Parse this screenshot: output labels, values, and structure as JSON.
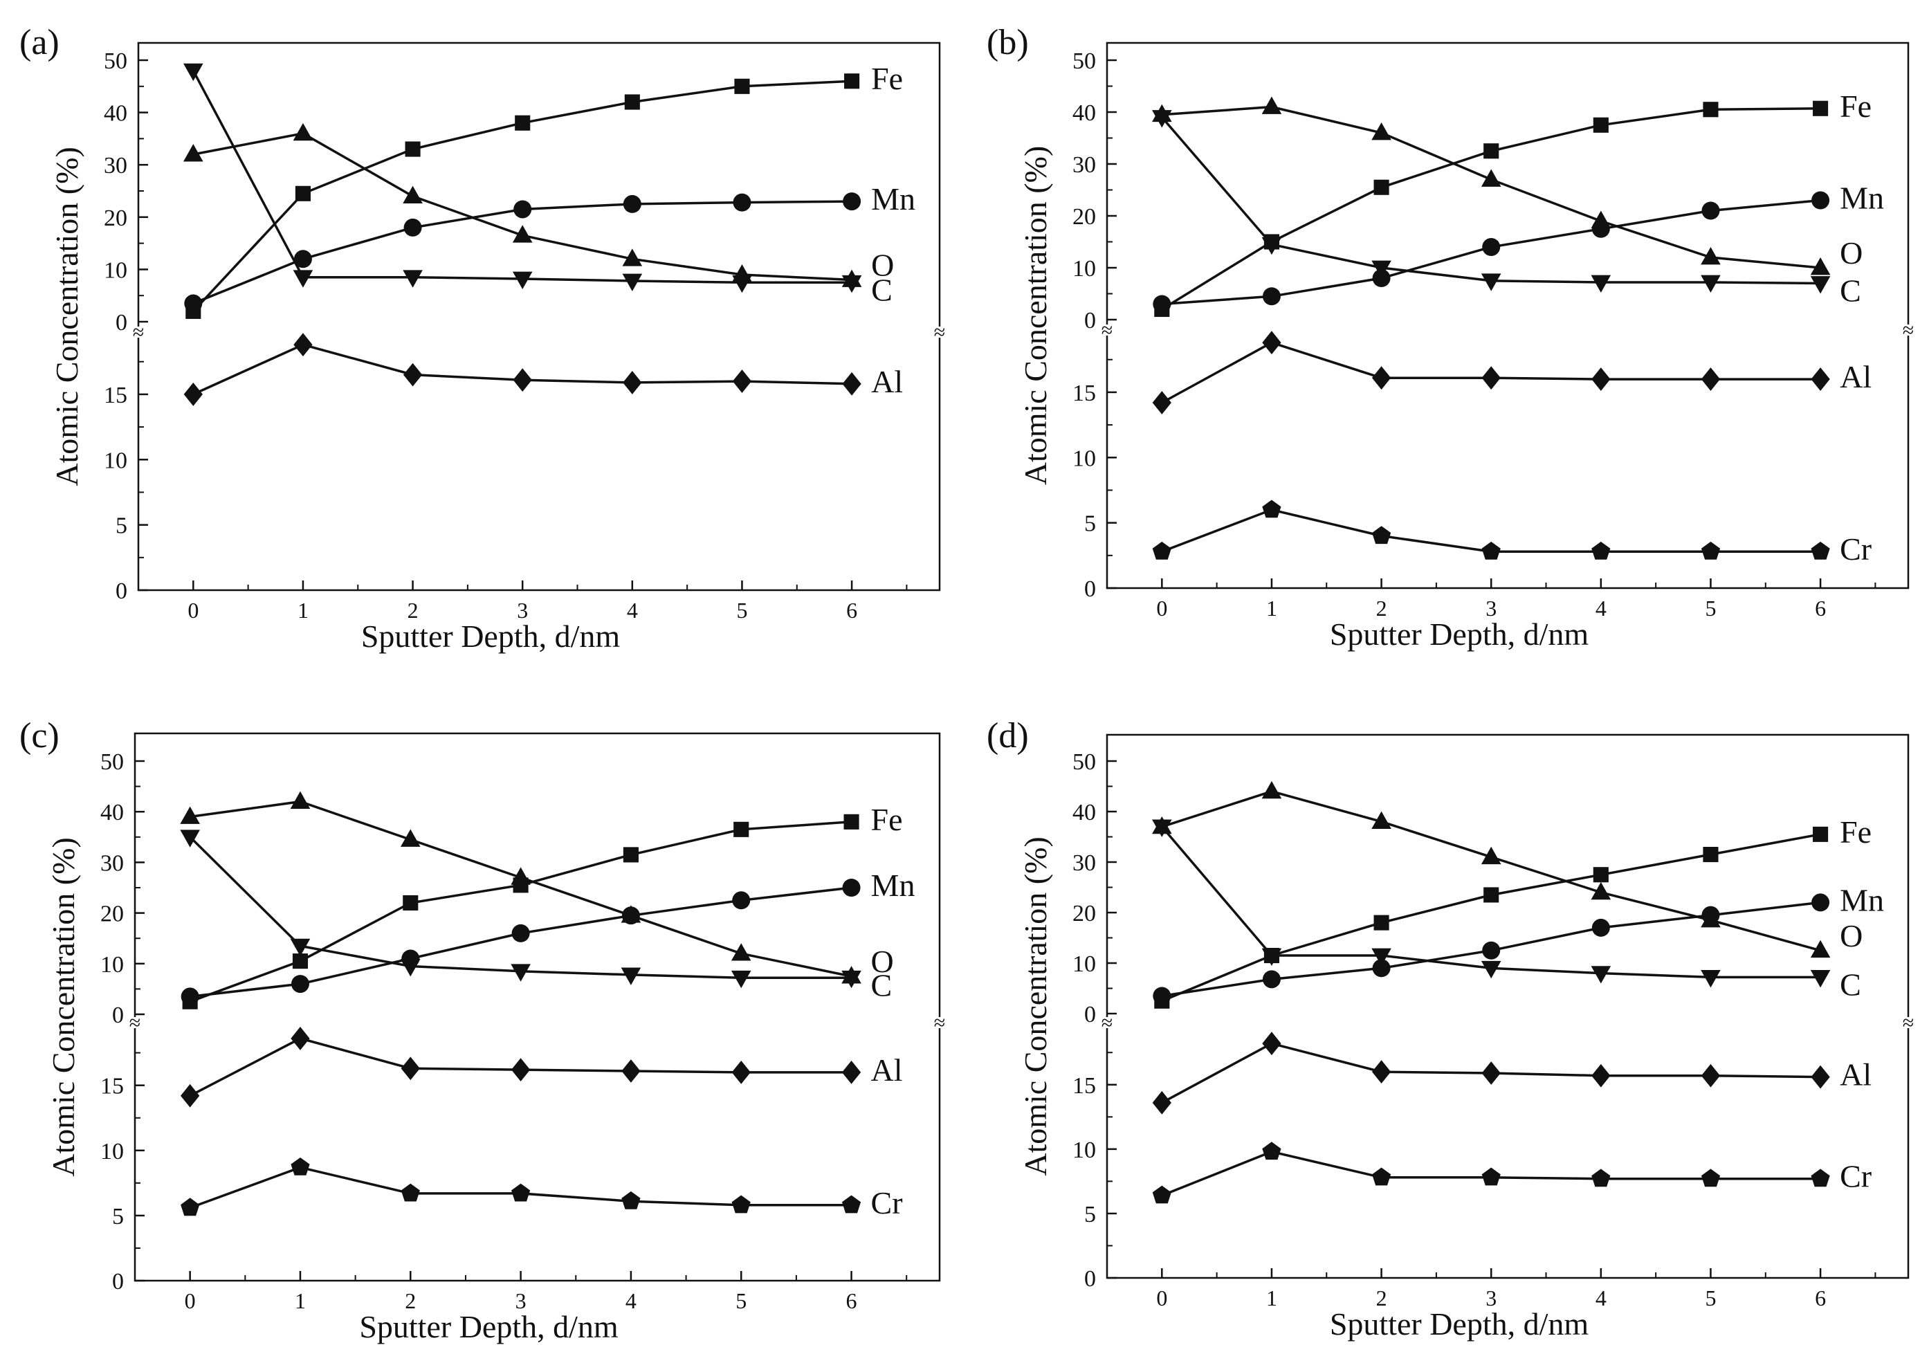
{
  "chart_data": [
    {
      "type": "line",
      "panel_label": "(a)",
      "xlabel": "Sputter Depth, d/nm",
      "ylabel": "Atomic Concentration (%)",
      "x": [
        0,
        1,
        2,
        3,
        4,
        5,
        6
      ],
      "x_ticks": [
        "0",
        "1",
        "2",
        "3",
        "4",
        "5",
        "6"
      ],
      "xlim": [
        -0.5,
        6.8
      ],
      "upper_axis": {
        "ylim": [
          0,
          55
        ],
        "ticks": [
          "0",
          "10",
          "20",
          "30",
          "40",
          "50"
        ]
      },
      "lower_axis": {
        "ylim": [
          0,
          20
        ],
        "ticks": [
          "0",
          "5",
          "10",
          "15"
        ]
      },
      "axis_break": "≈",
      "series": [
        {
          "name": "Fe",
          "marker": "square",
          "axis": "upper",
          "values": [
            2,
            24.5,
            33,
            38,
            42,
            45,
            46
          ]
        },
        {
          "name": "Mn",
          "marker": "circle",
          "axis": "upper",
          "values": [
            3.5,
            12,
            18,
            21.5,
            22.5,
            22.8,
            23
          ]
        },
        {
          "name": "O",
          "marker": "triangle-up",
          "axis": "upper",
          "values": [
            32,
            36,
            24,
            16.5,
            12,
            9,
            8
          ]
        },
        {
          "name": "C",
          "marker": "triangle-down",
          "axis": "upper",
          "values": [
            48,
            8.5,
            8.5,
            8.2,
            7.8,
            7.5,
            7.5
          ]
        },
        {
          "name": "Al",
          "marker": "diamond",
          "axis": "lower",
          "values": [
            15,
            18.8,
            16.5,
            16.1,
            15.9,
            16,
            15.8
          ]
        }
      ]
    },
    {
      "type": "line",
      "panel_label": "(b)",
      "xlabel": "Sputter Depth, d/nm",
      "ylabel": "Atomic Concentration (%)",
      "x": [
        0,
        1,
        2,
        3,
        4,
        5,
        6
      ],
      "x_ticks": [
        "0",
        "1",
        "2",
        "3",
        "4",
        "5",
        "6"
      ],
      "xlim": [
        -0.5,
        6.8
      ],
      "upper_axis": {
        "ylim": [
          0,
          55
        ],
        "ticks": [
          "0",
          "10",
          "20",
          "30",
          "40",
          "50"
        ]
      },
      "lower_axis": {
        "ylim": [
          0,
          20
        ],
        "ticks": [
          "0",
          "5",
          "10",
          "15"
        ]
      },
      "axis_break": "≈",
      "series": [
        {
          "name": "Fe",
          "marker": "square",
          "axis": "upper",
          "values": [
            2,
            15,
            25.5,
            32.5,
            37.5,
            40.5,
            40.7
          ]
        },
        {
          "name": "Mn",
          "marker": "circle",
          "axis": "upper",
          "values": [
            3,
            4.5,
            8,
            14,
            17.5,
            21,
            23
          ]
        },
        {
          "name": "O",
          "marker": "triangle-up",
          "axis": "upper",
          "values": [
            39.5,
            41,
            36,
            27,
            19,
            12,
            10
          ]
        },
        {
          "name": "C",
          "marker": "triangle-down",
          "axis": "upper",
          "values": [
            39,
            14.5,
            10,
            7.5,
            7.2,
            7.2,
            7
          ]
        },
        {
          "name": "Al",
          "marker": "diamond",
          "axis": "lower",
          "values": [
            14.2,
            18.8,
            16.1,
            16.1,
            16,
            16,
            16
          ]
        },
        {
          "name": "Cr",
          "marker": "pentagon",
          "axis": "lower",
          "values": [
            2.8,
            6,
            4,
            2.8,
            2.8,
            2.8,
            2.8
          ]
        }
      ]
    },
    {
      "type": "line",
      "panel_label": "(c)",
      "xlabel": "Sputter Depth, d/nm",
      "ylabel": "Atomic Concentration (%)",
      "x": [
        0,
        1,
        2,
        3,
        4,
        5,
        6
      ],
      "x_ticks": [
        "0",
        "1",
        "2",
        "3",
        "4",
        "5",
        "6"
      ],
      "xlim": [
        -0.5,
        6.8
      ],
      "upper_axis": {
        "ylim": [
          0,
          55
        ],
        "ticks": [
          "0",
          "10",
          "20",
          "30",
          "40",
          "50"
        ]
      },
      "lower_axis": {
        "ylim": [
          0,
          20
        ],
        "ticks": [
          "0",
          "5",
          "10",
          "15"
        ]
      },
      "axis_break": "≈",
      "series": [
        {
          "name": "Fe",
          "marker": "square",
          "axis": "upper",
          "values": [
            2.5,
            10.5,
            22,
            25.5,
            31.5,
            36.5,
            38
          ]
        },
        {
          "name": "Mn",
          "marker": "circle",
          "axis": "upper",
          "values": [
            3.5,
            6,
            11,
            16,
            19.5,
            22.5,
            25
          ]
        },
        {
          "name": "O",
          "marker": "triangle-up",
          "axis": "upper",
          "values": [
            39,
            42,
            34.5,
            27,
            19.5,
            12,
            7.5
          ]
        },
        {
          "name": "C",
          "marker": "triangle-down",
          "axis": "upper",
          "values": [
            35,
            13.5,
            9.5,
            8.5,
            7.8,
            7.2,
            7.2
          ]
        },
        {
          "name": "Al",
          "marker": "diamond",
          "axis": "lower",
          "values": [
            14.2,
            18.6,
            16.3,
            16.2,
            16.1,
            16,
            16
          ]
        },
        {
          "name": "Cr",
          "marker": "pentagon",
          "axis": "lower",
          "values": [
            5.6,
            8.7,
            6.7,
            6.7,
            6.1,
            5.8,
            5.8
          ]
        }
      ]
    },
    {
      "type": "line",
      "panel_label": "(d)",
      "xlabel": "Sputter Depth, d/nm",
      "ylabel": "Atomic Concentration (%)",
      "x": [
        0,
        1,
        2,
        3,
        4,
        5,
        6
      ],
      "x_ticks": [
        "0",
        "1",
        "2",
        "3",
        "4",
        "5",
        "6"
      ],
      "xlim": [
        -0.5,
        6.8
      ],
      "upper_axis": {
        "ylim": [
          0,
          55
        ],
        "ticks": [
          "0",
          "10",
          "20",
          "30",
          "40",
          "50"
        ]
      },
      "lower_axis": {
        "ylim": [
          0,
          20
        ],
        "ticks": [
          "0",
          "5",
          "10",
          "15"
        ]
      },
      "axis_break": "≈",
      "series": [
        {
          "name": "Fe",
          "marker": "square",
          "axis": "upper",
          "values": [
            2.5,
            11.5,
            18,
            23.5,
            27.5,
            31.5,
            35.5
          ]
        },
        {
          "name": "Mn",
          "marker": "circle",
          "axis": "upper",
          "values": [
            3.5,
            6.8,
            9,
            12.5,
            17,
            19.5,
            22
          ]
        },
        {
          "name": "O",
          "marker": "triangle-up",
          "axis": "upper",
          "values": [
            37,
            44,
            38,
            31,
            24,
            18.5,
            12.5
          ]
        },
        {
          "name": "C",
          "marker": "triangle-down",
          "axis": "upper",
          "values": [
            37,
            11.5,
            11.5,
            9,
            8,
            7.2,
            7.2
          ]
        },
        {
          "name": "Al",
          "marker": "diamond",
          "axis": "lower",
          "values": [
            13.6,
            18.2,
            16,
            15.9,
            15.7,
            15.7,
            15.6
          ]
        },
        {
          "name": "Cr",
          "marker": "pentagon",
          "axis": "lower",
          "values": [
            6.4,
            9.8,
            7.8,
            7.8,
            7.7,
            7.7,
            7.7
          ]
        }
      ]
    }
  ]
}
